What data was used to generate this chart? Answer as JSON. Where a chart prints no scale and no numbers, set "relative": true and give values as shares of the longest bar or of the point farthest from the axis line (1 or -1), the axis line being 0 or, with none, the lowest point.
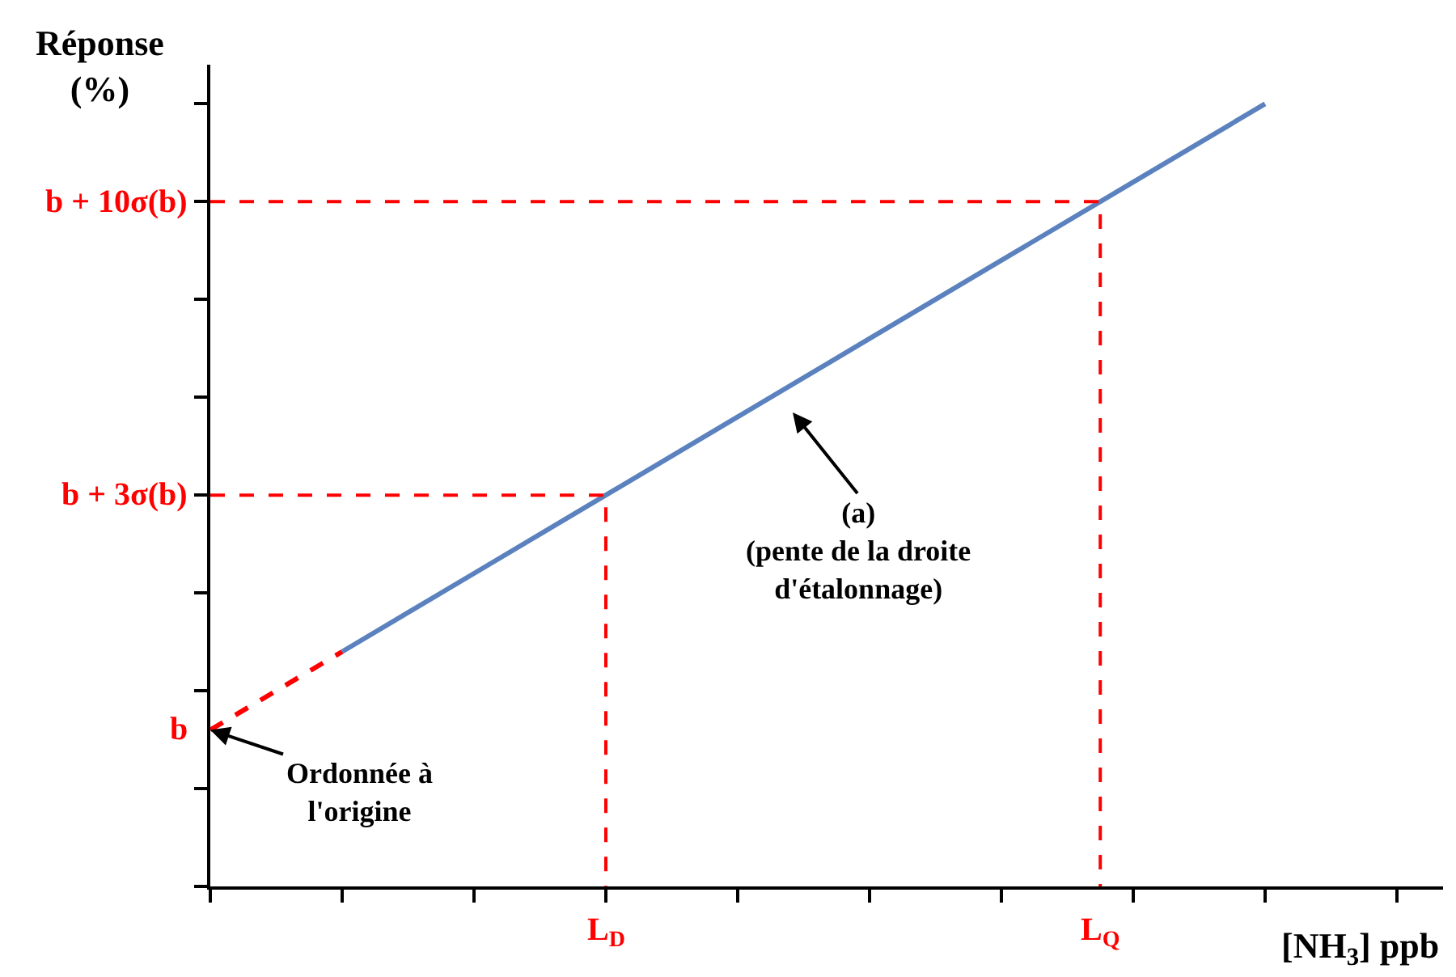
{
  "chart_data": {
    "type": "line",
    "relative": true,
    "ylabel": "Réponse\n(%)",
    "xlabel": "[NH$_{3}$] ppb",
    "categories": [
      null,
      null,
      null,
      null,
      null,
      null,
      null,
      null,
      null,
      null
    ],
    "series": [
      {
        "color": "#ff0000",
        "line_style": "dashed",
        "values": [
          0.2,
          0.3,
          null,
          null,
          null,
          null,
          null,
          null,
          null,
          null
        ]
      },
      {
        "color": "#5b82be",
        "line_style": "solid",
        "values": [
          null,
          0.3,
          0.4,
          0.5,
          0.6,
          0.7,
          0.8,
          0.9,
          1,
          null
        ]
      }
    ],
    "ref_lines": [
      {
        "axis": "y",
        "value": 0.5,
        "label": "b + 3σ(b)",
        "color": "#ff0000",
        "line_style": "dashed"
      },
      {
        "axis": "y",
        "value": 0.875,
        "label": "b + 10σ(b)",
        "color": "#ff0000",
        "line_style": "dashed"
      }
    ],
    "annotations": [
      "(a)\n(pente de la droite\nd'étalonnage)",
      "b",
      "Ordonnée à\nl'origine",
      "L$_{D}$",
      "L$_{Q}$"
    ],
    "grid": false,
    "marker": "none"
  }
}
